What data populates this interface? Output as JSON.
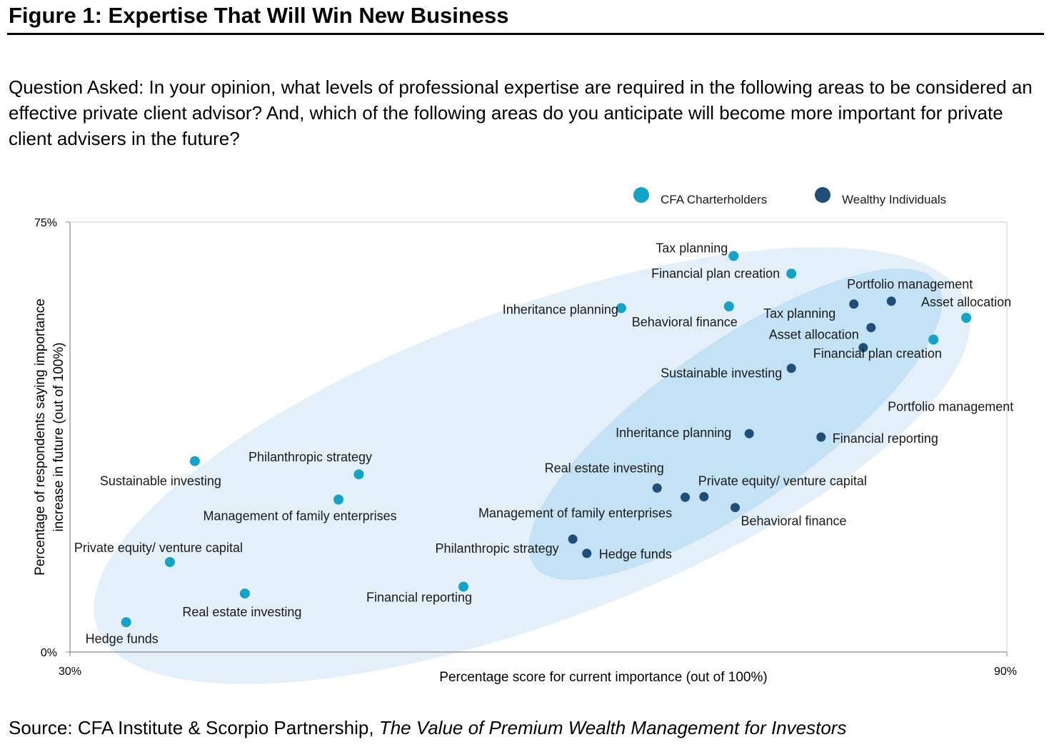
{
  "figure": {
    "title": "Figure 1: Expertise That Will Win New Business",
    "question": "Question Asked: In your opinion, what levels of professional expertise are required in the following areas to be considered an effective private client advisor? And, which of the following areas do you anticipate will become more important for private client advisers in the future?",
    "source_prefix": "Source: CFA Institute & Scorpio Partnership, ",
    "source_title": "The Value of Premium Wealth Management for Investors"
  },
  "colors": {
    "cfa": "#13a3c8",
    "wealthy": "#1f4e79",
    "ellipse_outer": "#e3f0fa",
    "ellipse_inner": "#c4e2f5",
    "grid": "#cccccc"
  },
  "chart_data": {
    "type": "scatter",
    "xlabel": "Percentage score for current importance (out of 100%)",
    "ylabel_line1": "Percentage of respondents saying importance",
    "ylabel_line2": "increase in future  (out of 100%)",
    "xlim": [
      30,
      90
    ],
    "ylim": [
      0,
      75
    ],
    "x_ticks": [
      "30%",
      "90%"
    ],
    "y_ticks": [
      "75%",
      "0%"
    ],
    "legend": {
      "position": "top-right"
    },
    "series": [
      {
        "name": "CFA Charterholders",
        "color": "#13a3c8",
        "points": [
          {
            "label": "Tax planning",
            "x": 72.5,
            "y": 69.1
          },
          {
            "label": "Financial plan creation",
            "x": 76.2,
            "y": 66.0
          },
          {
            "label": "Inheritance planning",
            "x": 65.3,
            "y": 60.0
          },
          {
            "label": "Behavioral finance",
            "x": 72.2,
            "y": 60.3
          },
          {
            "label": "Asset allocation",
            "x": 87.4,
            "y": 58.3
          },
          {
            "label": "Portfolio management",
            "x": 85.3,
            "y": 54.5
          },
          {
            "label": "Sustainable investing",
            "x": 38.0,
            "y": 33.3
          },
          {
            "label": "Philanthropic strategy",
            "x": 48.5,
            "y": 31.0
          },
          {
            "label": "Management of family enterprises",
            "x": 47.2,
            "y": 26.6
          },
          {
            "label": "Private equity/ venture capital",
            "x": 36.4,
            "y": 15.7
          },
          {
            "label": "Real estate  investing",
            "x": 41.2,
            "y": 10.2
          },
          {
            "label": "Financial reporting",
            "x": 55.2,
            "y": 11.4
          },
          {
            "label": "Hedge funds",
            "x": 33.6,
            "y": 5.2
          }
        ]
      },
      {
        "name": "Wealthy Individuals",
        "color": "#1f4e79",
        "points": [
          {
            "label": "Portfolio management",
            "x": 82.6,
            "y": 61.2
          },
          {
            "label": "Tax planning",
            "x": 80.2,
            "y": 60.7
          },
          {
            "label": "Asset allocation",
            "x": 81.3,
            "y": 56.6
          },
          {
            "label": "Financial plan creation",
            "x": 80.8,
            "y": 53.1
          },
          {
            "label": "Sustainable investing",
            "x": 76.2,
            "y": 49.5
          },
          {
            "label": "Inheritance planning",
            "x": 73.5,
            "y": 38.1
          },
          {
            "label": "Financial reporting",
            "x": 78.1,
            "y": 37.5
          },
          {
            "label": "Real estate  investing",
            "x": 67.6,
            "y": 28.6
          },
          {
            "label": "Private equity/ venture capital",
            "x": 70.6,
            "y": 27.1
          },
          {
            "label": "Management of family enterprises",
            "x": 69.4,
            "y": 27.0
          },
          {
            "label": "Behavioral finance",
            "x": 72.6,
            "y": 25.2
          },
          {
            "label": "Philanthropic strategy",
            "x": 62.2,
            "y": 19.7
          },
          {
            "label": "Hedge funds",
            "x": 63.1,
            "y": 17.2
          }
        ]
      }
    ]
  }
}
